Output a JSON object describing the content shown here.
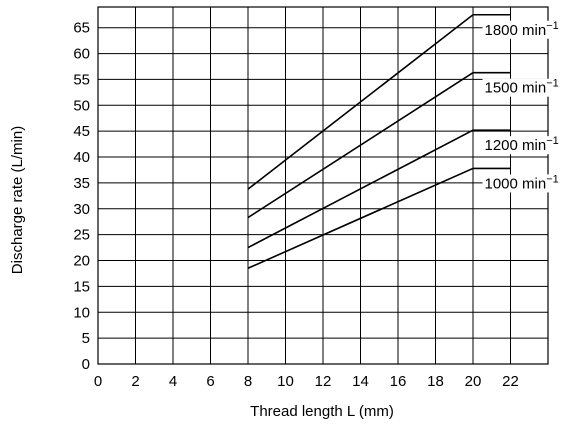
{
  "chart_data": {
    "type": "line",
    "xlabel": "Thread length L (mm)",
    "ylabel": "Discharge rate (L/min)",
    "xlim": [
      0,
      24
    ],
    "ylim": [
      0,
      69
    ],
    "x_ticks": [
      0,
      2,
      4,
      6,
      8,
      10,
      12,
      14,
      16,
      18,
      20,
      22
    ],
    "y_ticks": [
      0,
      5,
      10,
      15,
      20,
      25,
      30,
      35,
      40,
      45,
      50,
      55,
      60,
      65
    ],
    "grid": true,
    "legend": "inline labels at right end of each line",
    "series": [
      {
        "name": "1800 min",
        "name_superscript": "−1",
        "points": [
          [
            8,
            33.8
          ],
          [
            20,
            67.5
          ],
          [
            22,
            67.5
          ]
        ]
      },
      {
        "name": "1500 min",
        "name_superscript": "−1",
        "points": [
          [
            8,
            28.3
          ],
          [
            20,
            56.3
          ],
          [
            22,
            56.3
          ]
        ]
      },
      {
        "name": "1200 min",
        "name_superscript": "−1",
        "points": [
          [
            8,
            22.5
          ],
          [
            20,
            45.2
          ],
          [
            22,
            45.2
          ]
        ]
      },
      {
        "name": "1000 min",
        "name_superscript": "−1",
        "points": [
          [
            8,
            18.5
          ],
          [
            20,
            37.8
          ],
          [
            22,
            37.8
          ]
        ]
      }
    ]
  }
}
